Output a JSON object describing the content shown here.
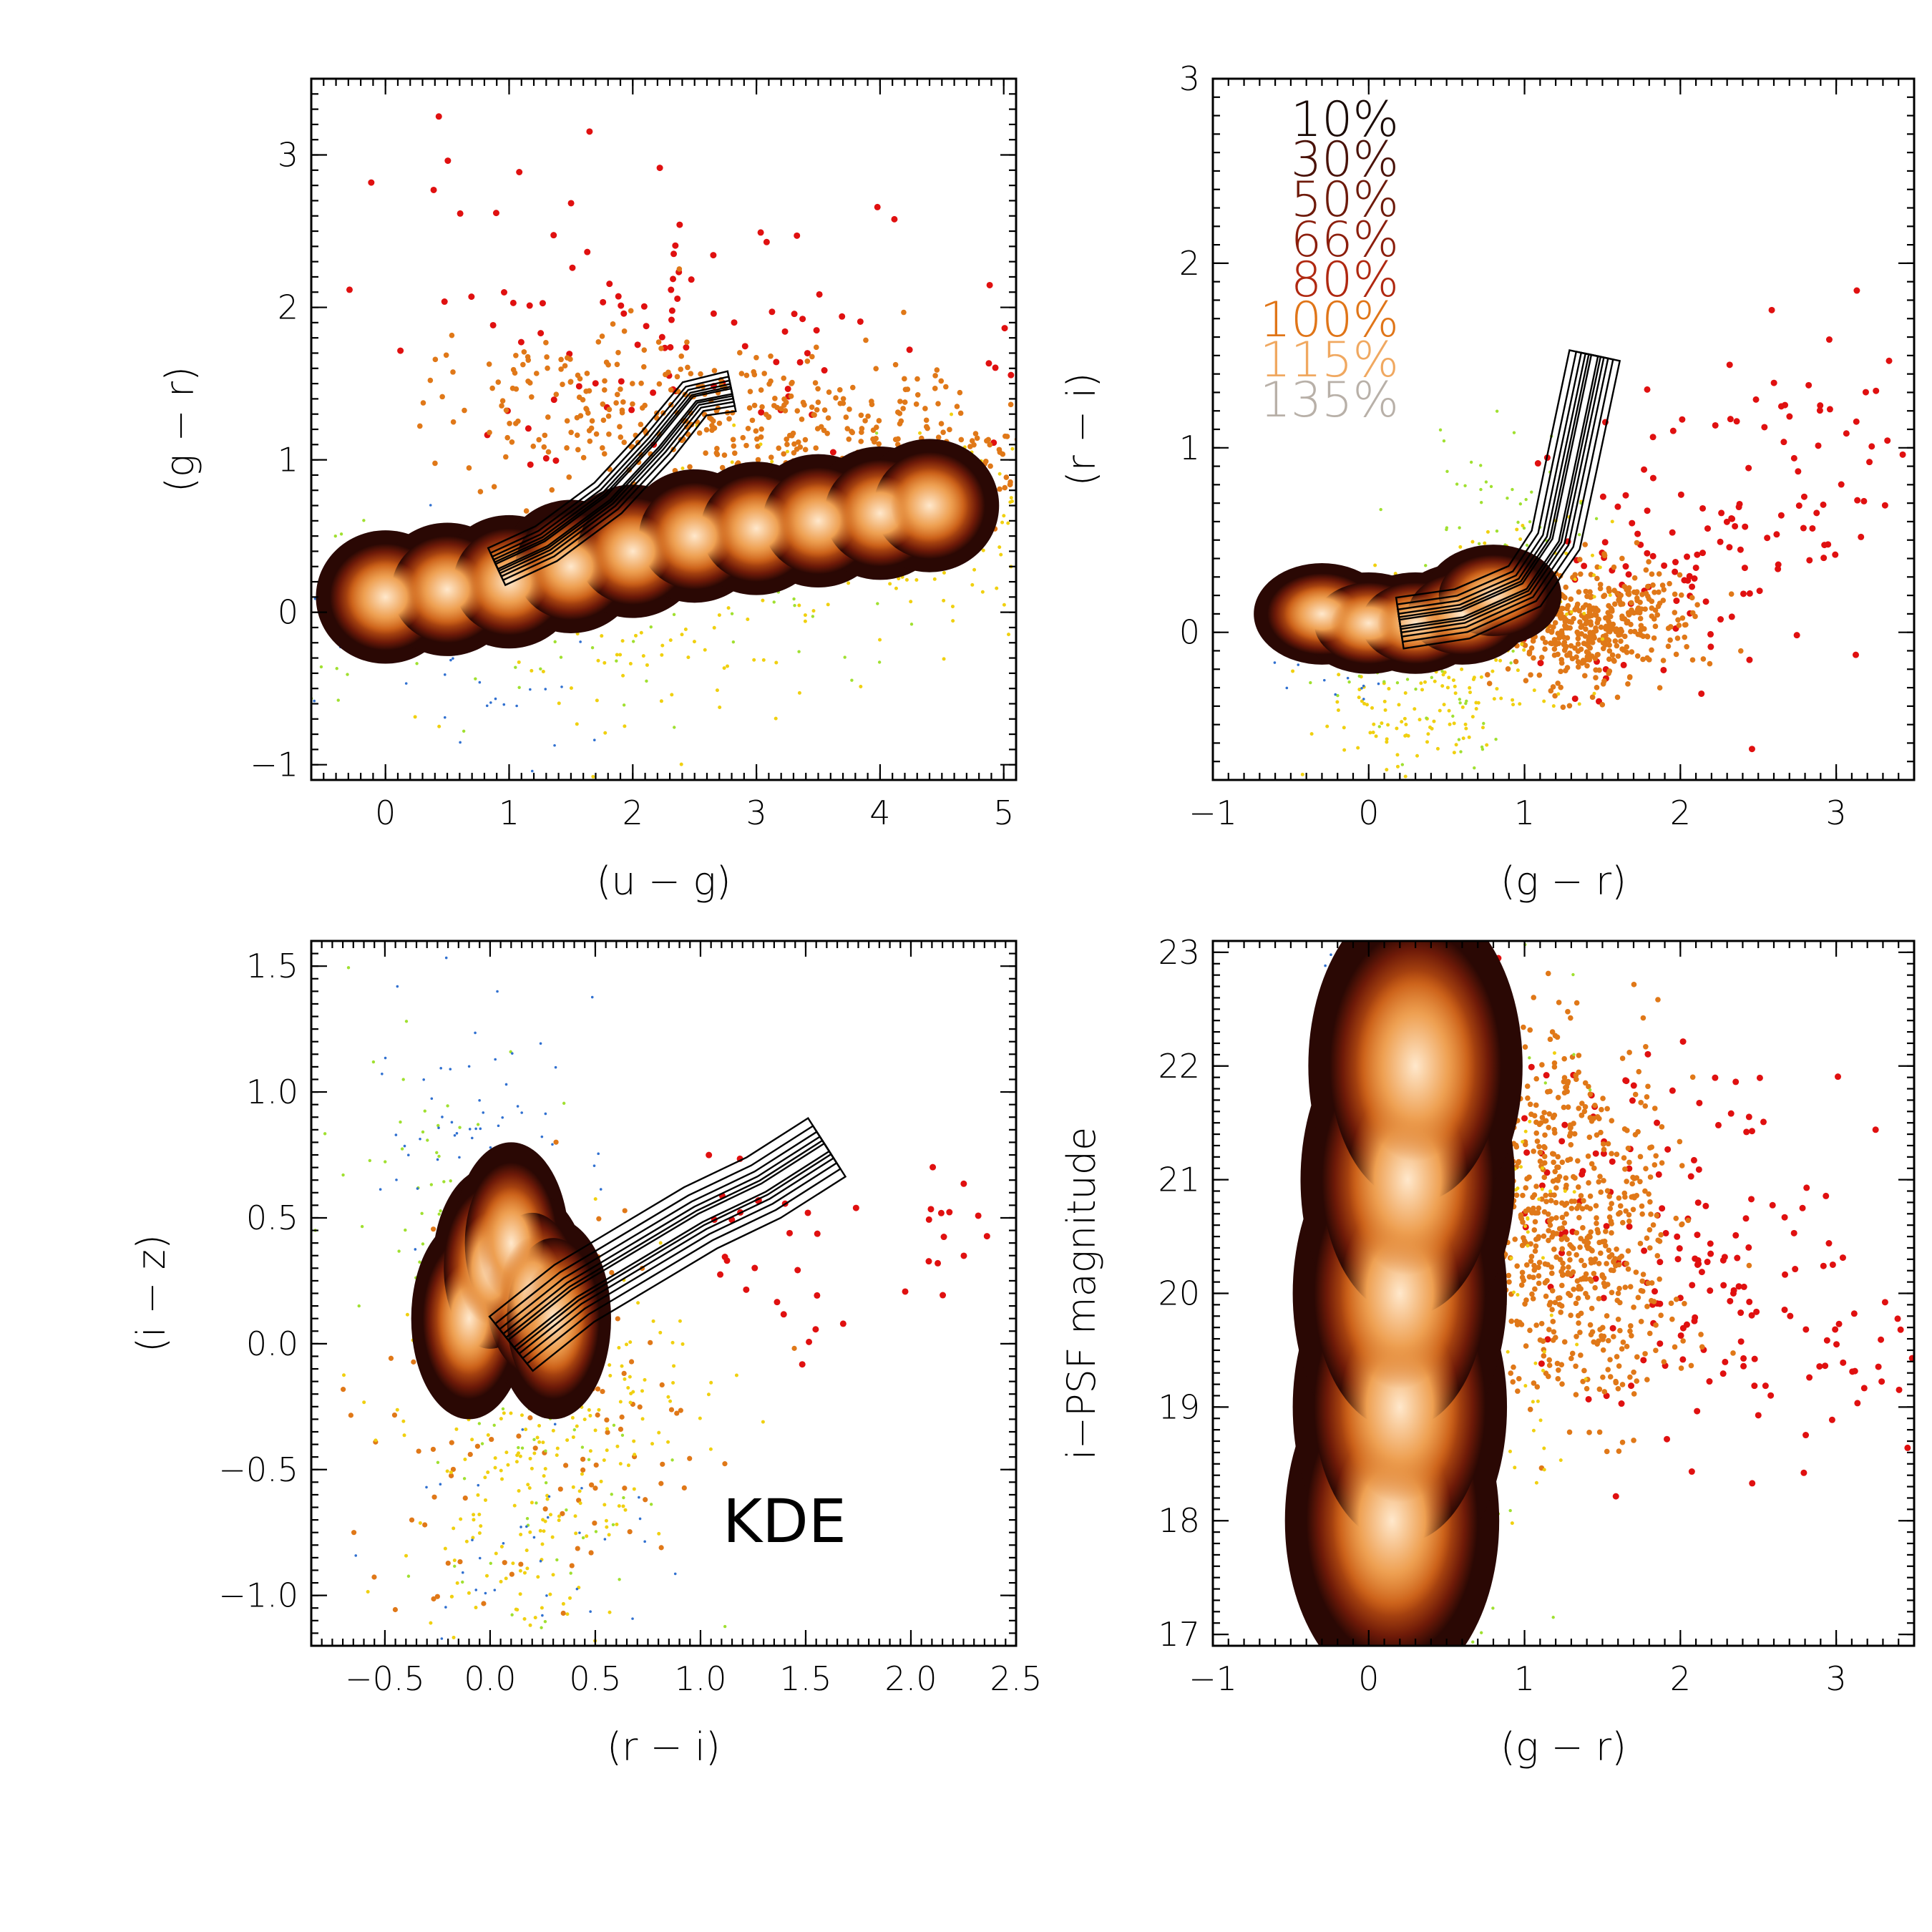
{
  "chart_data": [
    {
      "type": "scatter",
      "id": "ug_gr",
      "xlabel": "(u − g)",
      "ylabel": "(g − r)",
      "xlim": [
        -0.6,
        5.1
      ],
      "ylim": [
        -1.1,
        3.5
      ],
      "xticks": [
        0,
        1,
        2,
        3,
        4,
        5
      ],
      "yticks": [
        -1,
        0,
        1,
        2,
        3
      ],
      "xtick_labels": [
        "0",
        "1",
        "2",
        "3",
        "4",
        "5"
      ],
      "ytick_labels": [
        "−1",
        "0",
        "1",
        "2",
        "3"
      ],
      "density_locus": [
        [
          0.0,
          0.1
        ],
        [
          0.5,
          0.15
        ],
        [
          1.0,
          0.2
        ],
        [
          1.5,
          0.3
        ],
        [
          2.0,
          0.4
        ],
        [
          2.5,
          0.5
        ],
        [
          3.0,
          0.55
        ],
        [
          3.5,
          0.6
        ],
        [
          4.0,
          0.65
        ],
        [
          4.4,
          0.7
        ]
      ],
      "contour_locus": [
        [
          0.9,
          0.3
        ],
        [
          1.3,
          0.45
        ],
        [
          1.8,
          0.75
        ],
        [
          2.2,
          1.1
        ],
        [
          2.5,
          1.4
        ],
        [
          2.8,
          1.45
        ]
      ],
      "annotation": ""
    },
    {
      "type": "scatter",
      "id": "gr_ri",
      "xlabel": "(g − r)",
      "ylabel": "(r − i)",
      "xlim": [
        -1.0,
        3.5
      ],
      "ylim": [
        -0.8,
        3.0
      ],
      "xticks": [
        -1,
        0,
        1,
        2,
        3
      ],
      "yticks": [
        0,
        1,
        2,
        3
      ],
      "xtick_labels": [
        "−1",
        "0",
        "1",
        "2",
        "3"
      ],
      "ytick_labels": [
        "0",
        "1",
        "2",
        "3"
      ],
      "density_locus": [
        [
          -0.3,
          0.1
        ],
        [
          0.0,
          0.05
        ],
        [
          0.3,
          0.05
        ],
        [
          0.6,
          0.1
        ],
        [
          0.8,
          0.2
        ]
      ],
      "contour_locus": [
        [
          0.2,
          0.05
        ],
        [
          0.6,
          0.1
        ],
        [
          1.0,
          0.25
        ],
        [
          1.2,
          0.5
        ],
        [
          1.3,
          0.9
        ],
        [
          1.4,
          1.3
        ],
        [
          1.45,
          1.5
        ]
      ],
      "legend": [
        {
          "label": "10%",
          "color": "#1a0a05"
        },
        {
          "label": "30%",
          "color": "#4a1208"
        },
        {
          "label": "50%",
          "color": "#6e1a0a"
        },
        {
          "label": "66%",
          "color": "#8c1e0c"
        },
        {
          "label": "80%",
          "color": "#b02810"
        },
        {
          "label": "100%",
          "color": "#e07518"
        },
        {
          "label": "115%",
          "color": "#f0a860"
        },
        {
          "label": "135%",
          "color": "#b8b0a8"
        }
      ],
      "annotation": ""
    },
    {
      "type": "scatter",
      "id": "ri_iz",
      "xlabel": "(r − i)",
      "ylabel": "(i − z)",
      "xlim": [
        -0.85,
        2.5
      ],
      "ylim": [
        -1.2,
        1.6
      ],
      "xticks": [
        -0.5,
        0.0,
        0.5,
        1.0,
        1.5,
        2.0,
        2.5
      ],
      "yticks": [
        -1.0,
        -0.5,
        0.0,
        0.5,
        1.0,
        1.5
      ],
      "xtick_labels": [
        "−0.5",
        "0.0",
        "0.5",
        "1.0",
        "1.5",
        "2.0",
        "2.5"
      ],
      "ytick_labels": [
        "−1.0",
        "−0.5",
        "0.0",
        "0.5",
        "1.0",
        "1.5"
      ],
      "density_locus": [
        [
          -0.1,
          0.1
        ],
        [
          0.0,
          0.3
        ],
        [
          0.1,
          0.4
        ],
        [
          0.2,
          0.2
        ],
        [
          0.3,
          0.1
        ]
      ],
      "contour_locus": [
        [
          0.1,
          0.0
        ],
        [
          0.4,
          0.2
        ],
        [
          0.7,
          0.35
        ],
        [
          1.0,
          0.5
        ],
        [
          1.3,
          0.62
        ],
        [
          1.6,
          0.78
        ]
      ],
      "annotation": "KDE"
    },
    {
      "type": "scatter",
      "id": "gr_imag",
      "xlabel": "(g − r)",
      "ylabel": "i−PSF magnitude",
      "xlim": [
        -1.0,
        3.5
      ],
      "ylim": [
        16.9,
        23.1
      ],
      "xticks": [
        -1,
        0,
        1,
        2,
        3
      ],
      "yticks": [
        17,
        18,
        19,
        20,
        21,
        22,
        23
      ],
      "xtick_labels": [
        "−1",
        "0",
        "1",
        "2",
        "3"
      ],
      "ytick_labels": [
        "17",
        "18",
        "19",
        "20",
        "21",
        "22",
        "23"
      ],
      "density_locus": [
        [
          0.15,
          18.0
        ],
        [
          0.2,
          19.0
        ],
        [
          0.2,
          20.0
        ],
        [
          0.25,
          21.0
        ],
        [
          0.3,
          22.0
        ]
      ],
      "contour_locus": [],
      "annotation": ""
    }
  ]
}
